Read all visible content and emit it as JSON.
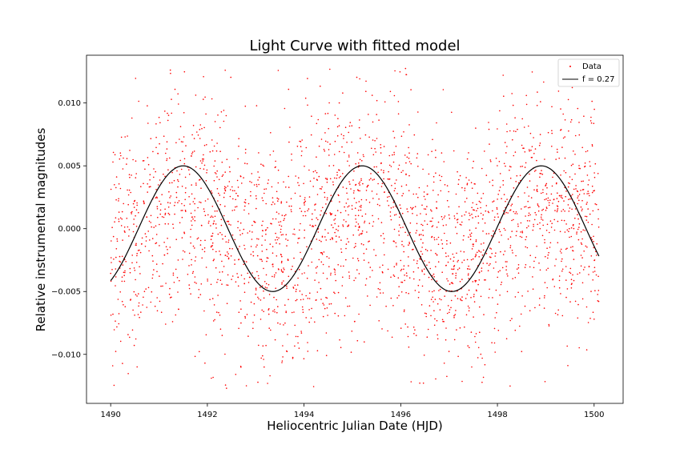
{
  "chart_data": {
    "type": "scatter",
    "title": "Light Curve with fitted model",
    "xlabel": "Heliocentric Julian Date (HJD)",
    "ylabel": "Relative instrumental magnitudes",
    "xlim": [
      1489.5,
      1500.6
    ],
    "ylim": [
      -0.0139,
      0.0138
    ],
    "x_ticks": [
      1490,
      1492,
      1494,
      1496,
      1498,
      1500
    ],
    "x_tick_labels": [
      "1490",
      "1492",
      "1494",
      "1496",
      "1498",
      "1500"
    ],
    "y_ticks": [
      -0.01,
      -0.005,
      0.0,
      0.005,
      0.01
    ],
    "y_tick_labels": [
      "−0.010",
      "−0.005",
      "0.000",
      "0.005",
      "0.010"
    ],
    "grid": false,
    "legend_position": "top-right",
    "series": [
      {
        "name": "Data",
        "kind": "scatter",
        "color": "#ff0000",
        "x_range": [
          1490.0,
          1500.1
        ],
        "n_points": 2600,
        "y_spread": 0.0127,
        "y_min": -0.0127,
        "y_max": 0.0129
      },
      {
        "name": "f = 0.27",
        "kind": "line",
        "color": "#000000",
        "model": "sine",
        "frequency": 0.27,
        "amplitude": 0.005,
        "peak_x": [
          1491.5,
          1495.2,
          1498.9
        ],
        "trough_x": [
          1493.35,
          1497.05
        ],
        "x_range": [
          1490.0,
          1500.1
        ]
      }
    ],
    "legend_entries": [
      "Data",
      "f = 0.27"
    ]
  }
}
